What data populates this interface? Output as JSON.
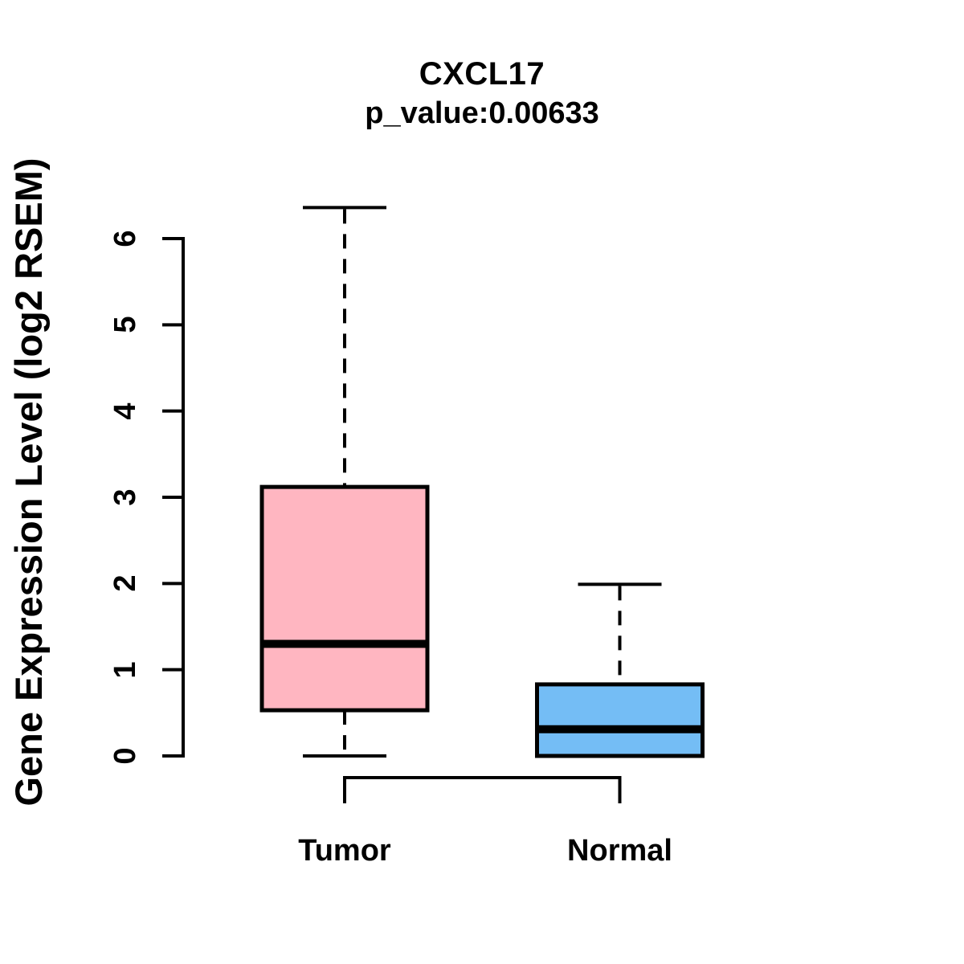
{
  "figure": {
    "background": "#ffffff",
    "line_color": "#000000"
  },
  "chart_data": {
    "type": "boxplot",
    "title": "CXCL17",
    "subtitle": "p_value:0.00633",
    "ylabel": "Gene Expression Level (log2 RSEM)",
    "xlabel": "",
    "ylim": [
      0,
      6.5
    ],
    "yticks": [
      0,
      1,
      2,
      3,
      4,
      5,
      6
    ],
    "grid": false,
    "legend": "none",
    "orientation": "vertical",
    "categories": [
      "Tumor",
      "Normal"
    ],
    "groups": [
      {
        "label": "Tumor",
        "color": "#FFB6C1",
        "min": 0,
        "q1": 0.53,
        "median": 1.3,
        "q3": 3.12,
        "max": 6.36,
        "outliers": []
      },
      {
        "label": "Normal",
        "color": "#74BDF5",
        "min": 0,
        "q1": 0,
        "median": 0.31,
        "q3": 0.83,
        "max": 1.99,
        "outliers": []
      }
    ],
    "comparison_bracket": {
      "between": [
        "Tumor",
        "Normal"
      ],
      "label": ""
    }
  }
}
